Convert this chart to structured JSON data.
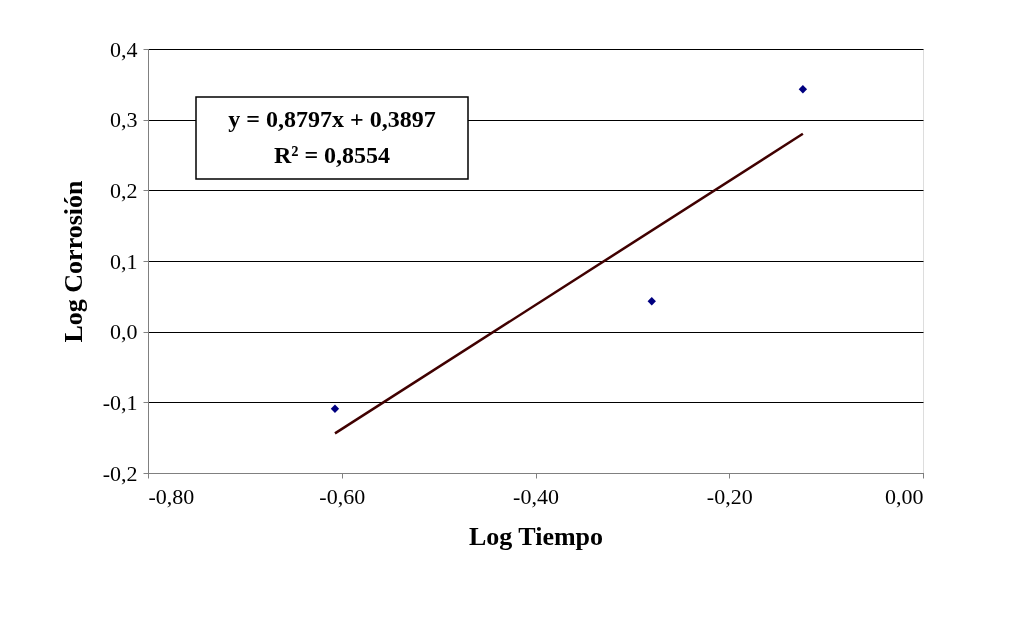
{
  "chart_data": {
    "type": "scatter",
    "xlabel": "Log Tiempo",
    "ylabel": "Log Corrosión",
    "series": [
      {
        "color": "#000080",
        "marker": "diamond",
        "x": [
          -0.607,
          -0.28,
          -0.124
        ],
        "values": [
          -0.109,
          0.043,
          0.343
        ]
      },
      {
        "type": "line",
        "color": "#400000",
        "marker": "none",
        "x": [
          -0.607,
          -0.124
        ],
        "values": [
          -0.144,
          0.28
        ]
      }
    ],
    "annotations": [
      "y = 0,8797x + 0,3897",
      "R² = 0,8554"
    ],
    "xlim": [
      -0.8,
      0.0
    ],
    "xticks": [
      {
        "value": -0.8,
        "label": "-0,80"
      },
      {
        "value": -0.6,
        "label": "-0,60"
      },
      {
        "value": -0.4,
        "label": "-0,40"
      },
      {
        "value": -0.2,
        "label": "-0,20"
      },
      {
        "value": 0.0,
        "label": "0,00"
      }
    ],
    "ylim": [
      -0.2,
      0.4
    ],
    "yticks": [
      {
        "value": -0.2,
        "label": "-0,2"
      },
      {
        "value": -0.1,
        "label": "-0,1"
      },
      {
        "value": 0.0,
        "label": "0,0"
      },
      {
        "value": 0.1,
        "label": "0,1"
      },
      {
        "value": 0.2,
        "label": "0,2"
      },
      {
        "value": 0.3,
        "label": "0,3"
      },
      {
        "value": 0.4,
        "label": "0,4"
      }
    ],
    "grid": "y"
  }
}
